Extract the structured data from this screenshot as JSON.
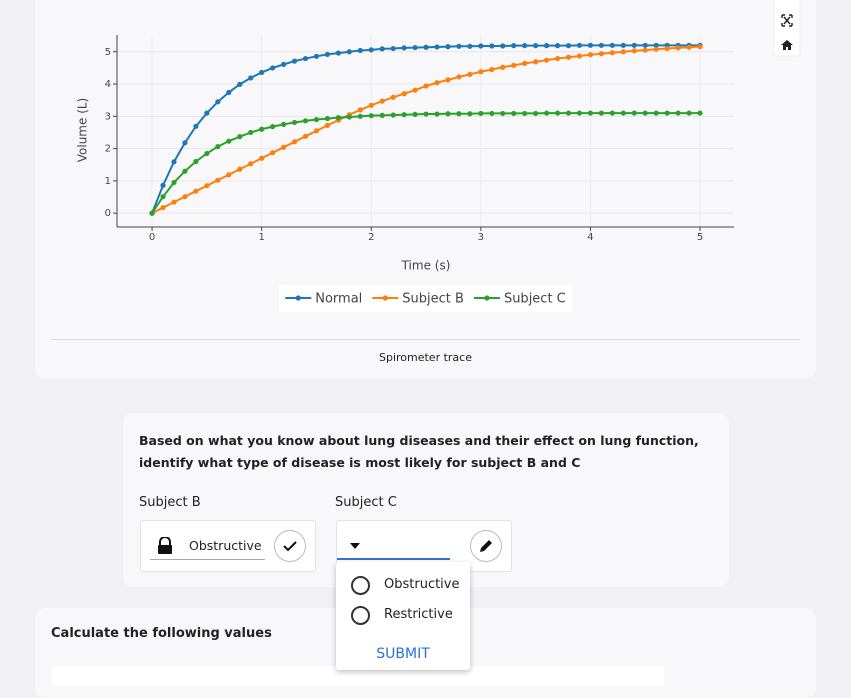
{
  "chart_data": {
    "type": "line",
    "xlabel": "Time (s)",
    "ylabel": "Volume (L)",
    "x": [
      0,
      0.1,
      0.2,
      0.3,
      0.4,
      0.5,
      0.6,
      0.7,
      0.8,
      0.9,
      1,
      1.1,
      1.2,
      1.3,
      1.4,
      1.5,
      1.6,
      1.7,
      1.8,
      1.9,
      2,
      2.1,
      2.2,
      2.3,
      2.4,
      2.5,
      2.6,
      2.7,
      2.8,
      2.9,
      3,
      3.1,
      3.2,
      3.3,
      3.4,
      3.5,
      3.6,
      3.7,
      3.8,
      3.9,
      4,
      4.1,
      4.2,
      4.3,
      4.4,
      4.5,
      4.6,
      4.7,
      4.8,
      4.9,
      5
    ],
    "series": [
      {
        "name": "Normal",
        "color": "#1f77b4",
        "values": [
          0,
          0.86,
          1.59,
          2.18,
          2.69,
          3.1,
          3.45,
          3.74,
          3.99,
          4.19,
          4.36,
          4.5,
          4.61,
          4.71,
          4.79,
          4.86,
          4.92,
          4.96,
          5,
          5.04,
          5.06,
          5.09,
          5.1,
          5.12,
          5.13,
          5.14,
          5.15,
          5.16,
          5.17,
          5.17,
          5.18,
          5.18,
          5.18,
          5.19,
          5.19,
          5.19,
          5.19,
          5.19,
          5.19,
          5.2,
          5.2,
          5.2,
          5.2,
          5.2,
          5.2,
          5.2,
          5.2,
          5.2,
          5.2,
          5.2,
          5.2
        ]
      },
      {
        "name": "Subject B",
        "color": "#ff7f0e",
        "values": [
          0,
          0.17,
          0.34,
          0.51,
          0.68,
          0.85,
          1.02,
          1.19,
          1.36,
          1.53,
          1.7,
          1.87,
          2.04,
          2.21,
          2.38,
          2.55,
          2.72,
          2.88,
          3.05,
          3.2,
          3.34,
          3.47,
          3.59,
          3.7,
          3.81,
          3.94,
          4.04,
          4.13,
          4.22,
          4.3,
          4.38,
          4.45,
          4.52,
          4.58,
          4.64,
          4.69,
          4.74,
          4.79,
          4.83,
          4.87,
          4.91,
          4.94,
          4.97,
          5,
          5.03,
          5.05,
          5.08,
          5.1,
          5.12,
          5.14,
          5.16
        ]
      },
      {
        "name": "Subject C",
        "color": "#2ca02c",
        "values": [
          0,
          0.51,
          0.95,
          1.3,
          1.6,
          1.85,
          2.06,
          2.23,
          2.37,
          2.5,
          2.6,
          2.68,
          2.75,
          2.81,
          2.86,
          2.9,
          2.93,
          2.96,
          2.98,
          3,
          3.02,
          3.03,
          3.04,
          3.05,
          3.06,
          3.07,
          3.07,
          3.08,
          3.08,
          3.08,
          3.09,
          3.09,
          3.09,
          3.09,
          3.09,
          3.09,
          3.1,
          3.1,
          3.1,
          3.1,
          3.1,
          3.1,
          3.1,
          3.1,
          3.1,
          3.1,
          3.1,
          3.1,
          3.1,
          3.1,
          3.1
        ]
      }
    ],
    "xlim": [
      -0.32,
      5.31
    ],
    "ylim": [
      -0.43,
      5.52
    ],
    "xticks": [
      0,
      1,
      2,
      3,
      4,
      5
    ],
    "yticks": [
      0,
      1,
      2,
      3,
      4,
      5
    ],
    "grid": true,
    "legend": "bottom"
  },
  "caption": "Spirometer trace",
  "question": {
    "text": "Based on what you know about lung diseases and their effect on lung function, identify what type of disease is most likely for subject B and C",
    "fields": [
      {
        "label": "Subject B",
        "value": "Obstructive"
      },
      {
        "label": "Subject C"
      }
    ],
    "options": [
      "Obstructive",
      "Restrictive"
    ],
    "submit": "SUBMIT"
  },
  "section": {
    "title": "Calculate the following values"
  }
}
